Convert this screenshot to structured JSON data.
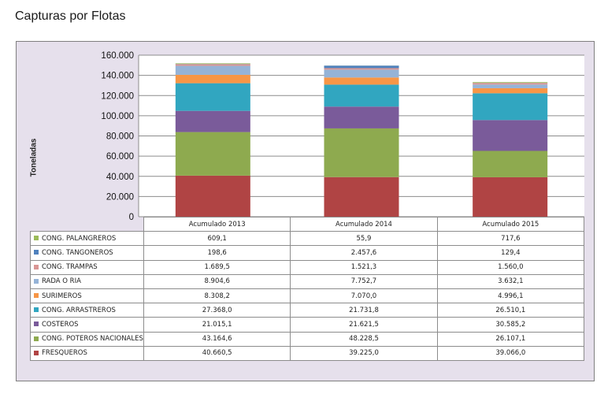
{
  "page": {
    "title": "Capturas por Flotas"
  },
  "chart_data": {
    "type": "bar",
    "stacked": true,
    "title": "Capturas por Flotas",
    "ylabel": "Toneladas",
    "ylim": [
      0,
      160000
    ],
    "yticks": [
      "0",
      "20.000",
      "40.000",
      "60.000",
      "80.000",
      "100.000",
      "120.000",
      "140.000",
      "160.000"
    ],
    "ytick_values": [
      0,
      20000,
      40000,
      60000,
      80000,
      100000,
      120000,
      140000,
      160000
    ],
    "categories": [
      "Acumulado 2013",
      "Acumulado 2014",
      "Acumulado 2015"
    ],
    "series": [
      {
        "name": "CONG. PALANGREROS",
        "color": "#9bbb59",
        "values": [
          609.1,
          55.9,
          717.6
        ],
        "labels": [
          "609,1",
          "55,9",
          "717,6"
        ]
      },
      {
        "name": "CONG. TANGONEROS",
        "color": "#4f81bd",
        "values": [
          198.6,
          2457.6,
          129.4
        ],
        "labels": [
          "198,6",
          "2.457,6",
          "129,4"
        ]
      },
      {
        "name": "CONG. TRAMPAS",
        "color": "#d99694",
        "values": [
          1689.5,
          1521.3,
          1560.0
        ],
        "labels": [
          "1.689,5",
          "1.521,3",
          "1.560,0"
        ]
      },
      {
        "name": "RADA O RIA",
        "color": "#95b3d7",
        "values": [
          8904.6,
          7752.7,
          3632.1
        ],
        "labels": [
          "8.904,6",
          "7.752,7",
          "3.632,1"
        ]
      },
      {
        "name": "SURIMEROS",
        "color": "#f79646",
        "values": [
          8308.2,
          7070.0,
          4996.1
        ],
        "labels": [
          "8.308,2",
          "7.070,0",
          "4.996,1"
        ]
      },
      {
        "name": "CONG. ARRASTREROS",
        "color": "#31a6c0",
        "values": [
          27368.0,
          21731.8,
          26510.1
        ],
        "labels": [
          "27.368,0",
          "21.731,8",
          "26.510,1"
        ]
      },
      {
        "name": "COSTEROS",
        "color": "#7a5b9a",
        "values": [
          21015.1,
          21621.5,
          30585.2
        ],
        "labels": [
          "21.015,1",
          "21.621,5",
          "30.585,2"
        ]
      },
      {
        "name": "CONG. POTEROS NACIONALES",
        "color": "#8eaa4f",
        "values": [
          43164.6,
          48228.5,
          26107.1
        ],
        "labels": [
          "43.164,6",
          "48.228,5",
          "26.107,1"
        ]
      },
      {
        "name": "FRESQUEROS",
        "color": "#b04444",
        "values": [
          40660.5,
          39225.0,
          39066.0
        ],
        "labels": [
          "40.660,5",
          "39.225,0",
          "39.066,0"
        ]
      }
    ],
    "stack_order_bottom_to_top": [
      "FRESQUEROS",
      "CONG. POTEROS NACIONALES",
      "COSTEROS",
      "CONG. ARRASTREROS",
      "SURIMEROS",
      "RADA O RIA",
      "CONG. TRAMPAS",
      "CONG. TANGONEROS",
      "CONG. PALANGREROS"
    ],
    "grid": true,
    "legend": "table-below"
  }
}
